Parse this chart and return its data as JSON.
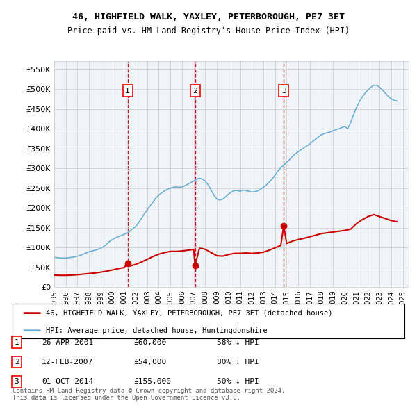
{
  "title": "46, HIGHFIELD WALK, YAXLEY, PETERBOROUGH, PE7 3ET",
  "subtitle": "Price paid vs. HM Land Registry's House Price Index (HPI)",
  "ylim": [
    0,
    570000
  ],
  "yticks": [
    0,
    50000,
    100000,
    150000,
    200000,
    250000,
    300000,
    350000,
    400000,
    450000,
    500000,
    550000
  ],
  "ytick_labels": [
    "£0",
    "£50K",
    "£100K",
    "£150K",
    "£200K",
    "£250K",
    "£300K",
    "£350K",
    "£400K",
    "£450K",
    "£500K",
    "£550K"
  ],
  "xlim_start": 1995.0,
  "xlim_end": 2025.5,
  "sale_dates": [
    2001.32,
    2007.12,
    2014.75
  ],
  "sale_prices": [
    60000,
    54000,
    155000
  ],
  "sale_labels": [
    "1",
    "2",
    "3"
  ],
  "hpi_color": "#6baed6",
  "sale_color": "#cc0000",
  "dashed_color": "#cc0000",
  "background_color": "#f0f4f8",
  "plot_bg_color": "#ffffff",
  "legend_label_sale": "46, HIGHFIELD WALK, YAXLEY, PETERBOROUGH, PE7 3ET (detached house)",
  "legend_label_hpi": "HPI: Average price, detached house, Huntingdonshire",
  "table_entries": [
    {
      "num": "1",
      "date": "26-APR-2001",
      "price": "£60,000",
      "pct": "58% ↓ HPI"
    },
    {
      "num": "2",
      "date": "12-FEB-2007",
      "price": "£54,000",
      "pct": "80% ↓ HPI"
    },
    {
      "num": "3",
      "date": "01-OCT-2014",
      "price": "£155,000",
      "pct": "50% ↓ HPI"
    }
  ],
  "footnote": "Contains HM Land Registry data © Crown copyright and database right 2024.\nThis data is licensed under the Open Government Licence v3.0.",
  "hpi_data": {
    "years": [
      1995.0,
      1995.25,
      1995.5,
      1995.75,
      1996.0,
      1996.25,
      1996.5,
      1996.75,
      1997.0,
      1997.25,
      1997.5,
      1997.75,
      1998.0,
      1998.25,
      1998.5,
      1998.75,
      1999.0,
      1999.25,
      1999.5,
      1999.75,
      2000.0,
      2000.25,
      2000.5,
      2000.75,
      2001.0,
      2001.25,
      2001.5,
      2001.75,
      2002.0,
      2002.25,
      2002.5,
      2002.75,
      2003.0,
      2003.25,
      2003.5,
      2003.75,
      2004.0,
      2004.25,
      2004.5,
      2004.75,
      2005.0,
      2005.25,
      2005.5,
      2005.75,
      2006.0,
      2006.25,
      2006.5,
      2006.75,
      2007.0,
      2007.25,
      2007.5,
      2007.75,
      2008.0,
      2008.25,
      2008.5,
      2008.75,
      2009.0,
      2009.25,
      2009.5,
      2009.75,
      2010.0,
      2010.25,
      2010.5,
      2010.75,
      2011.0,
      2011.25,
      2011.5,
      2011.75,
      2012.0,
      2012.25,
      2012.5,
      2012.75,
      2013.0,
      2013.25,
      2013.5,
      2013.75,
      2014.0,
      2014.25,
      2014.5,
      2014.75,
      2015.0,
      2015.25,
      2015.5,
      2015.75,
      2016.0,
      2016.25,
      2016.5,
      2016.75,
      2017.0,
      2017.25,
      2017.5,
      2017.75,
      2018.0,
      2018.25,
      2018.5,
      2018.75,
      2019.0,
      2019.25,
      2019.5,
      2019.75,
      2020.0,
      2020.25,
      2020.5,
      2020.75,
      2021.0,
      2021.25,
      2021.5,
      2021.75,
      2022.0,
      2022.25,
      2022.5,
      2022.75,
      2023.0,
      2023.25,
      2023.5,
      2023.75,
      2024.0,
      2024.25,
      2024.5
    ],
    "values": [
      75000,
      74000,
      73500,
      73000,
      73500,
      74000,
      75000,
      76000,
      78000,
      80000,
      83000,
      86000,
      89000,
      91000,
      93000,
      95000,
      98000,
      102000,
      108000,
      115000,
      120000,
      124000,
      127000,
      130000,
      133000,
      136000,
      141000,
      147000,
      153000,
      162000,
      173000,
      185000,
      195000,
      205000,
      215000,
      225000,
      232000,
      238000,
      243000,
      247000,
      250000,
      252000,
      253000,
      252000,
      253000,
      256000,
      260000,
      264000,
      268000,
      272000,
      275000,
      273000,
      268000,
      258000,
      245000,
      232000,
      222000,
      220000,
      222000,
      228000,
      235000,
      240000,
      244000,
      244000,
      242000,
      245000,
      244000,
      242000,
      240000,
      241000,
      243000,
      247000,
      252000,
      258000,
      265000,
      273000,
      283000,
      293000,
      302000,
      308000,
      315000,
      322000,
      330000,
      337000,
      342000,
      347000,
      352000,
      357000,
      362000,
      368000,
      374000,
      380000,
      385000,
      388000,
      390000,
      392000,
      395000,
      398000,
      400000,
      403000,
      406000,
      400000,
      415000,
      435000,
      453000,
      468000,
      480000,
      490000,
      498000,
      505000,
      510000,
      510000,
      505000,
      498000,
      490000,
      482000,
      476000,
      472000,
      470000
    ]
  },
  "sale_hpi_data": {
    "years": [
      1995.0,
      1995.5,
      1996.0,
      1996.5,
      1997.0,
      1997.5,
      1998.0,
      1998.5,
      1999.0,
      1999.5,
      2000.0,
      2000.5,
      2001.0,
      2001.32,
      2001.5,
      2001.75,
      2002.0,
      2002.5,
      2003.0,
      2003.5,
      2004.0,
      2004.5,
      2005.0,
      2005.5,
      2006.0,
      2006.5,
      2007.0,
      2007.12,
      2007.5,
      2007.75,
      2008.0,
      2008.5,
      2009.0,
      2009.5,
      2010.0,
      2010.5,
      2011.0,
      2011.5,
      2012.0,
      2012.5,
      2013.0,
      2013.5,
      2014.0,
      2014.5,
      2014.75,
      2015.0,
      2015.5,
      2016.0,
      2016.5,
      2017.0,
      2017.5,
      2018.0,
      2018.5,
      2019.0,
      2019.5,
      2020.0,
      2020.5,
      2021.0,
      2021.5,
      2022.0,
      2022.5,
      2023.0,
      2023.5,
      2024.0,
      2024.5
    ],
    "values": [
      30000,
      29500,
      29500,
      30000,
      31000,
      32500,
      34000,
      35500,
      37500,
      40000,
      43000,
      46500,
      49000,
      60000,
      53000,
      55000,
      57000,
      63000,
      70000,
      77000,
      83000,
      87000,
      90000,
      90000,
      91000,
      93000,
      95000,
      54000,
      98000,
      97000,
      95000,
      87000,
      79000,
      78000,
      82000,
      85000,
      85000,
      86000,
      85000,
      86000,
      88000,
      93000,
      99000,
      105000,
      155000,
      110000,
      116000,
      120000,
      123000,
      127000,
      131000,
      135000,
      137000,
      139000,
      141000,
      143000,
      146000,
      160000,
      170000,
      178000,
      183000,
      178000,
      173000,
      168000,
      165000
    ]
  }
}
